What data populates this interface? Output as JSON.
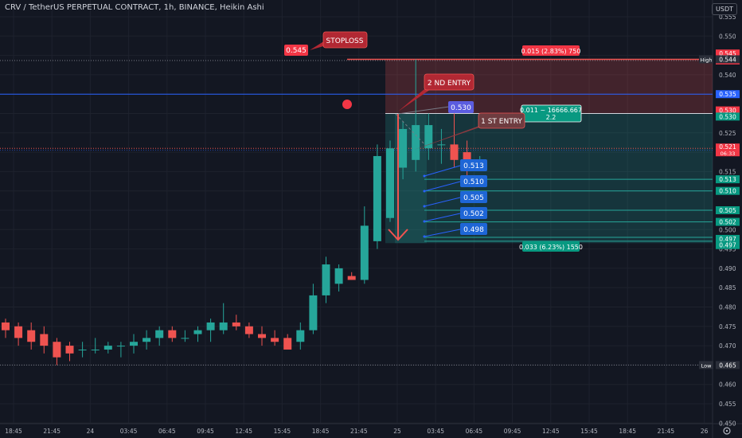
{
  "header": {
    "title": "CRV / TetherUS PERPETUAL CONTRACT, 1h, BINANCE, Heikin Ashi",
    "currency": "USDT"
  },
  "colors": {
    "background": "#131722",
    "up": "#26a69a",
    "down": "#ef5350",
    "grid": "#1e222d",
    "axis_text": "#b2b5be",
    "blue_line": "#2962ff",
    "target_label": "#1e66d6"
  },
  "chart_data": {
    "type": "candlestick",
    "title": "CRV / TetherUS PERPETUAL CONTRACT, 1h, BINANCE, Heikin Ashi",
    "ylim": [
      0.45,
      0.555
    ],
    "y_ticks": [
      "0.555",
      "0.550",
      "0.545",
      "0.540",
      "0.535",
      "0.530",
      "0.525",
      "0.520",
      "0.515",
      "0.510",
      "0.505",
      "0.500",
      "0.495",
      "0.490",
      "0.485",
      "0.480",
      "0.475",
      "0.470",
      "0.465",
      "0.460",
      "0.455",
      "0.450"
    ],
    "x_ticks": [
      "18:45",
      "21:45",
      "24",
      "03:45",
      "06:45",
      "09:45",
      "12:45",
      "15:45",
      "18:45",
      "21:45",
      "25",
      "03:45",
      "06:45",
      "09:45",
      "12:45",
      "15:45",
      "18:45",
      "21:45",
      "26"
    ],
    "candles": [
      [
        0.476,
        0.477,
        0.472,
        0.474
      ],
      [
        0.475,
        0.476,
        0.47,
        0.472
      ],
      [
        0.474,
        0.476,
        0.469,
        0.471
      ],
      [
        0.473,
        0.475,
        0.468,
        0.47
      ],
      [
        0.471,
        0.472,
        0.465,
        0.467
      ],
      [
        0.47,
        0.471,
        0.466,
        0.468
      ],
      [
        0.469,
        0.471,
        0.467,
        0.469
      ],
      [
        0.469,
        0.472,
        0.468,
        0.469
      ],
      [
        0.469,
        0.471,
        0.468,
        0.47
      ],
      [
        0.47,
        0.471,
        0.467,
        0.47
      ],
      [
        0.47,
        0.473,
        0.468,
        0.471
      ],
      [
        0.471,
        0.474,
        0.469,
        0.472
      ],
      [
        0.472,
        0.475,
        0.47,
        0.474
      ],
      [
        0.474,
        0.475,
        0.471,
        0.472
      ],
      [
        0.472,
        0.474,
        0.471,
        0.472
      ],
      [
        0.473,
        0.475,
        0.471,
        0.474
      ],
      [
        0.474,
        0.477,
        0.471,
        0.476
      ],
      [
        0.474,
        0.481,
        0.473,
        0.476
      ],
      [
        0.476,
        0.478,
        0.474,
        0.475
      ],
      [
        0.475,
        0.476,
        0.472,
        0.473
      ],
      [
        0.473,
        0.475,
        0.47,
        0.472
      ],
      [
        0.472,
        0.474,
        0.47,
        0.471
      ],
      [
        0.472,
        0.473,
        0.47,
        0.469
      ],
      [
        0.471,
        0.476,
        0.469,
        0.474
      ],
      [
        0.474,
        0.486,
        0.473,
        0.483
      ],
      [
        0.483,
        0.493,
        0.481,
        0.491
      ],
      [
        0.486,
        0.491,
        0.484,
        0.49
      ],
      [
        0.488,
        0.489,
        0.487,
        0.487
      ],
      [
        0.487,
        0.506,
        0.486,
        0.501
      ],
      [
        0.497,
        0.522,
        0.495,
        0.519
      ],
      [
        0.503,
        0.523,
        0.502,
        0.521
      ],
      [
        0.516,
        0.528,
        0.513,
        0.526
      ],
      [
        0.518,
        0.544,
        0.515,
        0.527
      ],
      [
        0.521,
        0.53,
        0.518,
        0.527
      ],
      [
        0.522,
        0.526,
        0.517,
        0.522
      ],
      [
        0.522,
        0.53,
        0.516,
        0.518
      ],
      [
        0.52,
        0.523,
        0.512,
        0.517
      ],
      [
        0.518,
        0.519,
        0.517,
        0.518
      ]
    ],
    "horizontal_levels": {
      "stoploss": 0.545,
      "high": 0.544,
      "blue_line": 0.535,
      "entry_2": 0.53,
      "current": 0.521,
      "targets": [
        0.513,
        0.51,
        0.505,
        0.502,
        0.498,
        0.497
      ],
      "low": 0.465
    },
    "annotations": {
      "stoploss_tag": "0.545",
      "stoploss_label": "STOPLOSS",
      "entry2_label": "2 ND ENTRY",
      "entry1_label": "1 ST ENTRY",
      "entry2_price": "0.530",
      "risk_label": "0.015 (2.83%) 750",
      "rr_line1": "0.011 ~ 16666.667",
      "rr_line2": "2.2",
      "reward_label": "0.033 (6.23%) 1550",
      "target_labels": [
        "0.513",
        "0.510",
        "0.505",
        "0.502",
        "0.498"
      ]
    },
    "price_axis_tags": [
      {
        "text": "0.545",
        "price": 0.5455,
        "kind": "red"
      },
      {
        "text": "0.544",
        "price": 0.5437,
        "kind": "red"
      },
      {
        "text": "High",
        "price": 0.544,
        "kind": "hl",
        "value": "0.544"
      },
      {
        "text": "0.535",
        "price": 0.535,
        "kind": "blue"
      },
      {
        "text": "0.530",
        "price": 0.5308,
        "kind": "red"
      },
      {
        "text": "0.530",
        "price": 0.5292,
        "kind": "teal"
      },
      {
        "text": "0.521",
        "price": 0.521,
        "kind": "redstack",
        "sub": "06:33"
      },
      {
        "text": "0.513",
        "price": 0.513,
        "kind": "teal"
      },
      {
        "text": "0.510",
        "price": 0.51,
        "kind": "teal"
      },
      {
        "text": "0.505",
        "price": 0.505,
        "kind": "teal"
      },
      {
        "text": "0.502",
        "price": 0.502,
        "kind": "teal"
      },
      {
        "text": "0.497",
        "price": 0.4976,
        "kind": "teal"
      },
      {
        "text": "0.497",
        "price": 0.496,
        "kind": "teal"
      },
      {
        "text": "Low",
        "price": 0.465,
        "kind": "hl",
        "value": "0.465"
      }
    ]
  }
}
